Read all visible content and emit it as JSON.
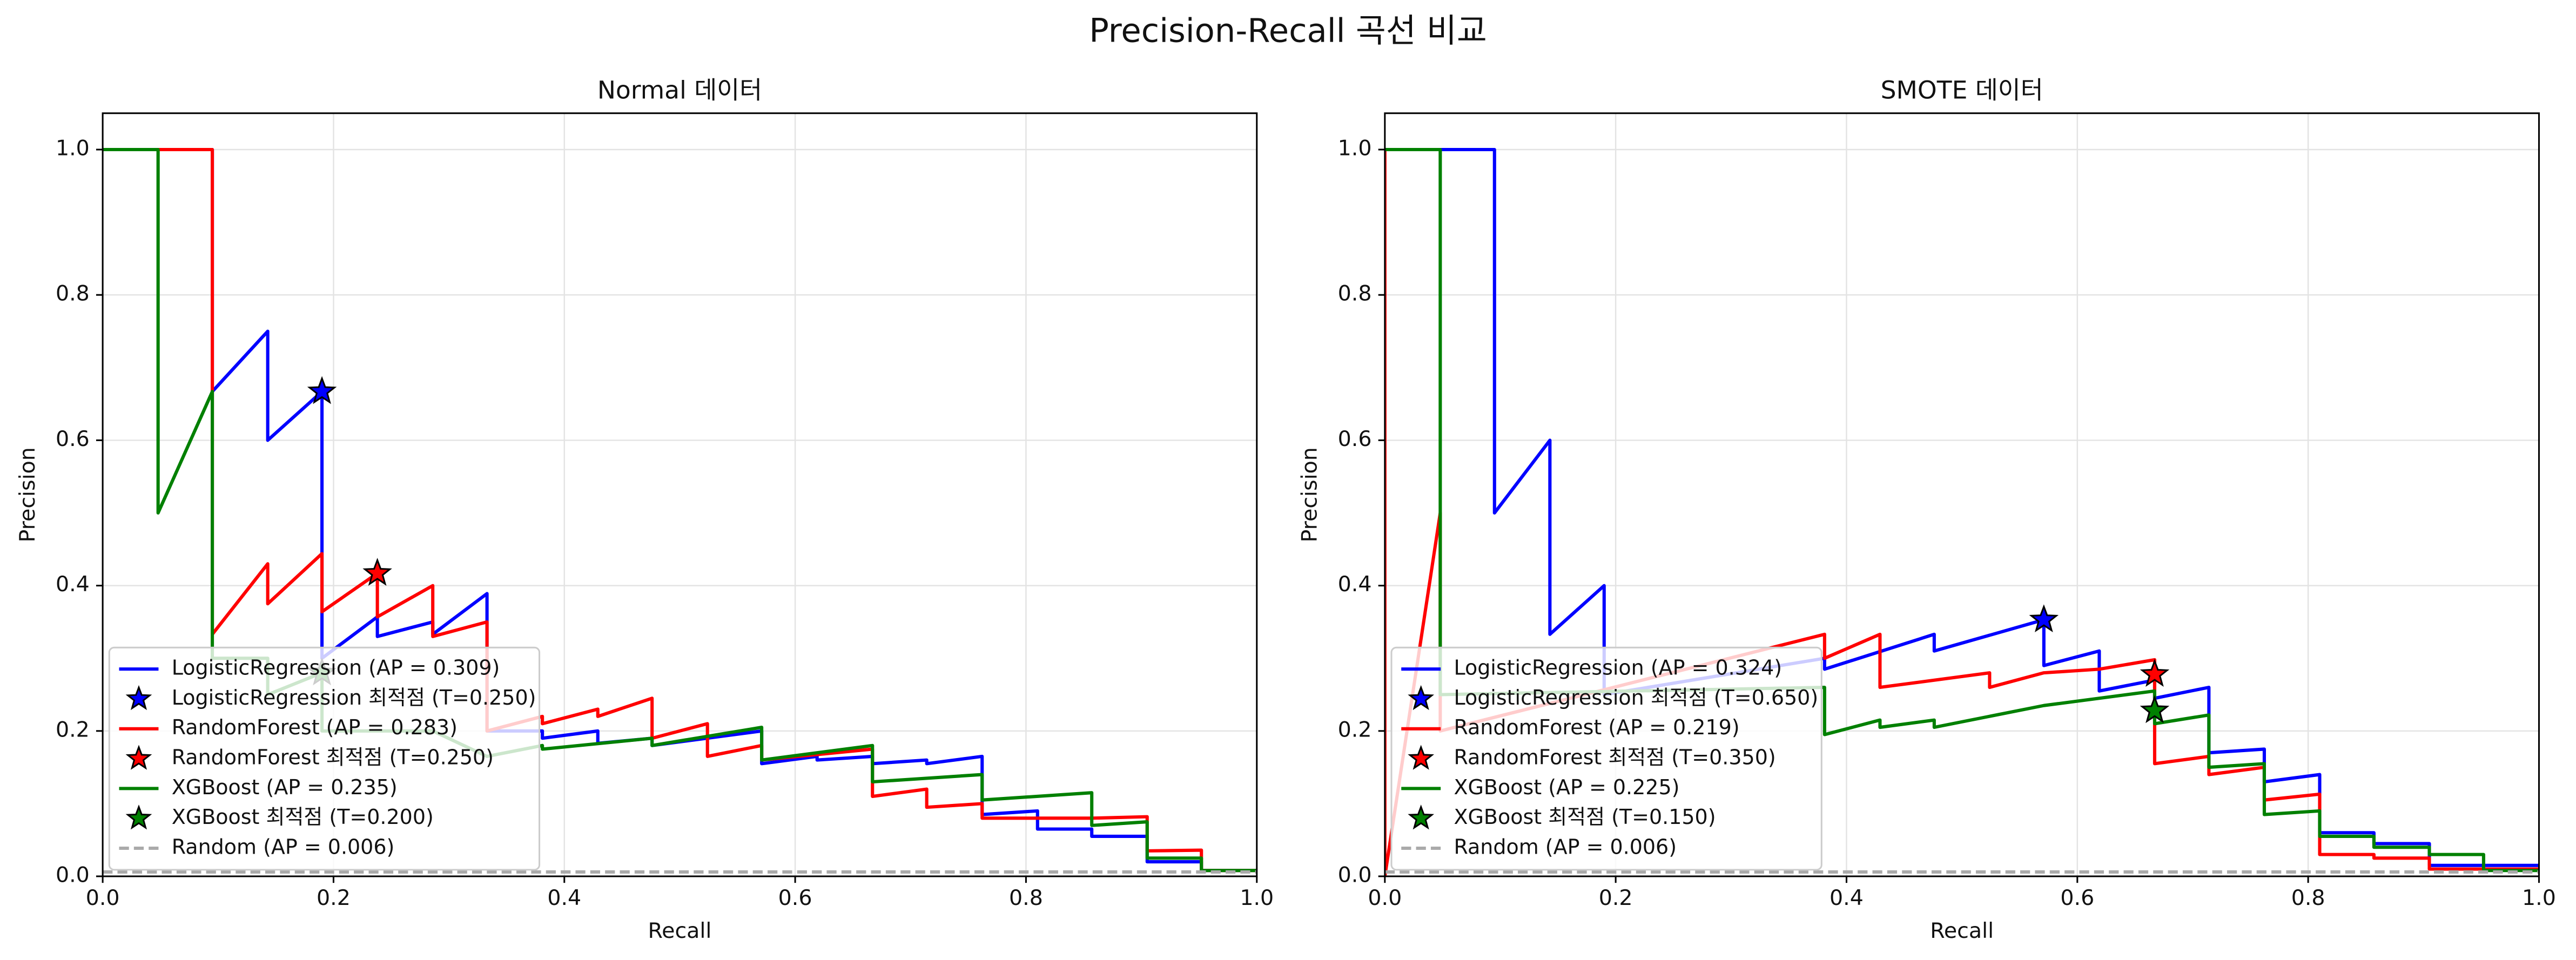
{
  "title": "Precision-Recall 곡선 비교",
  "chart_data": [
    {
      "type": "line",
      "title": "Normal 데이터",
      "xlabel": "Recall",
      "ylabel": "Precision",
      "xlim": [
        0,
        1
      ],
      "ylim": [
        0,
        1.05
      ],
      "xticks": [
        {
          "value": 0,
          "label": "0.0"
        },
        0.2,
        0.4,
        0.6,
        0.8,
        {
          "value": 1,
          "label": "1.0"
        }
      ],
      "yticks": [
        {
          "value": 0,
          "label": "0.0"
        },
        0.2,
        0.4,
        0.6,
        0.8,
        {
          "value": 1,
          "label": "1.0"
        }
      ],
      "grid": true,
      "legend": "lower left",
      "series": [
        {
          "name": "LogisticRegression (AP = 0.309)",
          "color": "#0000ff",
          "style": "solid",
          "x": [
            0,
            0.095,
            0.095,
            0.143,
            0.143,
            0.19,
            0.19,
            0.238,
            0.238,
            0.286,
            0.286,
            0.333,
            0.333,
            0.381,
            0.381,
            0.429,
            0.429,
            0.476,
            0.476,
            0.571,
            0.571,
            0.619,
            0.619,
            0.667,
            0.667,
            0.714,
            0.714,
            0.762,
            0.762,
            0.81,
            0.81,
            0.857,
            0.857,
            0.905,
            0.905,
            0.952,
            0.952,
            1
          ],
          "values": [
            1,
            1,
            0.667,
            0.75,
            0.6,
            0.667,
            0.3,
            0.357,
            0.33,
            0.35,
            0.333,
            0.389,
            0.2,
            0.2,
            0.19,
            0.2,
            0.183,
            0.19,
            0.18,
            0.2,
            0.155,
            0.165,
            0.16,
            0.165,
            0.155,
            0.16,
            0.155,
            0.165,
            0.085,
            0.09,
            0.065,
            0.065,
            0.055,
            0.055,
            0.02,
            0.02,
            0.008,
            0.008
          ]
        },
        {
          "name": "LogisticRegression 최적점 (T=0.250)",
          "color": "#0000ff",
          "marker": "star",
          "x": [
            0.19
          ],
          "values": [
            0.667
          ]
        },
        {
          "name": "RandomForest (AP = 0.283)",
          "color": "#ff0000",
          "style": "solid",
          "x": [
            0,
            0.095,
            0.095,
            0.143,
            0.143,
            0.19,
            0.19,
            0.238,
            0.238,
            0.286,
            0.286,
            0.333,
            0.333,
            0.381,
            0.381,
            0.429,
            0.429,
            0.476,
            0.476,
            0.524,
            0.524,
            0.571,
            0.571,
            0.667,
            0.667,
            0.714,
            0.714,
            0.762,
            0.762,
            0.857,
            0.905,
            0.905,
            0.952,
            0.952,
            1
          ],
          "values": [
            1,
            1,
            0.333,
            0.43,
            0.375,
            0.444,
            0.364,
            0.417,
            0.357,
            0.4,
            0.33,
            0.35,
            0.2,
            0.22,
            0.21,
            0.23,
            0.22,
            0.245,
            0.19,
            0.21,
            0.165,
            0.18,
            0.16,
            0.175,
            0.11,
            0.12,
            0.095,
            0.1,
            0.08,
            0.08,
            0.082,
            0.035,
            0.036,
            0.008,
            0.008
          ]
        },
        {
          "name": "RandomForest 최적점 (T=0.250)",
          "color": "#ff0000",
          "marker": "star",
          "x": [
            0.238
          ],
          "values": [
            0.417
          ]
        },
        {
          "name": "XGBoost (AP = 0.235)",
          "color": "#008000",
          "style": "solid",
          "x": [
            0,
            0.048,
            0.048,
            0.095,
            0.095,
            0.143,
            0.143,
            0.19,
            0.19,
            0.286,
            0.333,
            0.381,
            0.381,
            0.476,
            0.476,
            0.571,
            0.571,
            0.667,
            0.667,
            0.762,
            0.762,
            0.857,
            0.857,
            0.905,
            0.905,
            0.952,
            0.952,
            1
          ],
          "values": [
            1,
            1,
            0.5,
            0.667,
            0.3,
            0.3,
            0.25,
            0.28,
            0.2,
            0.2,
            0.165,
            0.18,
            0.175,
            0.19,
            0.18,
            0.205,
            0.16,
            0.18,
            0.13,
            0.14,
            0.105,
            0.115,
            0.07,
            0.075,
            0.025,
            0.025,
            0.008,
            0.008
          ]
        },
        {
          "name": "XGBoost 최적점 (T=0.200)",
          "color": "#008000",
          "marker": "star",
          "x": [
            0.19
          ],
          "values": [
            0.28
          ]
        },
        {
          "name": "Random (AP = 0.006)",
          "color": "#aaaaaa",
          "style": "dashed",
          "x": [
            0,
            1
          ],
          "values": [
            0.006,
            0.006
          ]
        }
      ]
    },
    {
      "type": "line",
      "title": "SMOTE 데이터",
      "xlabel": "Recall",
      "ylabel": "Precision",
      "xlim": [
        0,
        1
      ],
      "ylim": [
        0,
        1.05
      ],
      "xticks": [
        {
          "value": 0,
          "label": "0.0"
        },
        0.2,
        0.4,
        0.6,
        0.8,
        {
          "value": 1,
          "label": "1.0"
        }
      ],
      "yticks": [
        {
          "value": 0,
          "label": "0.0"
        },
        0.2,
        0.4,
        0.6,
        0.8,
        {
          "value": 1,
          "label": "1.0"
        }
      ],
      "grid": true,
      "legend": "lower left",
      "series": [
        {
          "name": "LogisticRegression (AP = 0.324)",
          "color": "#0000ff",
          "style": "solid",
          "x": [
            0,
            0.095,
            0.095,
            0.143,
            0.143,
            0.19,
            0.19,
            0.381,
            0.381,
            0.476,
            0.476,
            0.571,
            0.571,
            0.619,
            0.619,
            0.667,
            0.667,
            0.714,
            0.714,
            0.762,
            0.762,
            0.81,
            0.81,
            0.857,
            0.857,
            0.905,
            0.905,
            1
          ],
          "values": [
            1,
            1,
            0.5,
            0.6,
            0.333,
            0.4,
            0.25,
            0.3,
            0.285,
            0.333,
            0.31,
            0.353,
            0.29,
            0.31,
            0.255,
            0.27,
            0.245,
            0.26,
            0.17,
            0.175,
            0.13,
            0.14,
            0.06,
            0.06,
            0.045,
            0.045,
            0.015,
            0.015
          ]
        },
        {
          "name": "LogisticRegression 최적점 (T=0.650)",
          "color": "#0000ff",
          "marker": "star",
          "x": [
            0.571
          ],
          "values": [
            0.353
          ]
        },
        {
          "name": "RandomForest (AP = 0.219)",
          "color": "#ff0000",
          "style": "solid",
          "x": [
            0,
            0,
            0.048,
            0.048,
            0.381,
            0.381,
            0.429,
            0.429,
            0.524,
            0.524,
            0.571,
            0.619,
            0.667,
            0.667,
            0.714,
            0.714,
            0.762,
            0.762,
            0.81,
            0.81,
            0.857,
            0.857,
            0.905,
            0.905,
            1
          ],
          "values": [
            1,
            0,
            0.5,
            0.2,
            0.333,
            0.3,
            0.333,
            0.26,
            0.28,
            0.26,
            0.28,
            0.285,
            0.298,
            0.155,
            0.165,
            0.14,
            0.15,
            0.105,
            0.113,
            0.03,
            0.03,
            0.025,
            0.025,
            0.01,
            0.01
          ]
        },
        {
          "name": "RandomForest 최적점 (T=0.350)",
          "color": "#ff0000",
          "marker": "star",
          "x": [
            0.667
          ],
          "values": [
            0.278
          ]
        },
        {
          "name": "XGBoost (AP = 0.225)",
          "color": "#008000",
          "style": "solid",
          "x": [
            0,
            0.048,
            0.048,
            0.381,
            0.381,
            0.429,
            0.429,
            0.476,
            0.476,
            0.571,
            0.667,
            0.667,
            0.714,
            0.714,
            0.762,
            0.762,
            0.81,
            0.81,
            0.857,
            0.857,
            0.905,
            0.905,
            0.952,
            0.952,
            1
          ],
          "values": [
            1,
            1,
            0.25,
            0.26,
            0.195,
            0.215,
            0.205,
            0.215,
            0.205,
            0.235,
            0.255,
            0.21,
            0.222,
            0.15,
            0.155,
            0.085,
            0.09,
            0.055,
            0.055,
            0.04,
            0.04,
            0.03,
            0.03,
            0.008,
            0.008
          ]
        },
        {
          "name": "XGBoost 최적점 (T=0.150)",
          "color": "#008000",
          "marker": "star",
          "x": [
            0.667
          ],
          "values": [
            0.228
          ]
        },
        {
          "name": "Random (AP = 0.006)",
          "color": "#aaaaaa",
          "style": "dashed",
          "x": [
            0,
            1
          ],
          "values": [
            0.006,
            0.006
          ]
        }
      ]
    }
  ]
}
